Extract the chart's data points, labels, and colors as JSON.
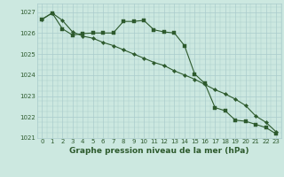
{
  "line1_x": [
    0,
    1,
    2,
    3,
    4,
    5,
    6,
    7,
    8,
    9,
    10,
    11,
    12,
    13,
    14,
    15,
    16,
    17,
    18,
    19,
    20,
    21,
    22,
    23
  ],
  "line1_y": [
    1026.65,
    1026.95,
    1026.2,
    1025.9,
    1025.97,
    1026.0,
    1026.0,
    1026.0,
    1026.55,
    1026.55,
    1026.6,
    1026.15,
    1026.05,
    1026.0,
    1025.4,
    1024.05,
    1023.6,
    1022.45,
    1022.3,
    1021.85,
    1021.8,
    1021.65,
    1021.5,
    1021.2
  ],
  "line2_x": [
    0,
    1,
    2,
    3,
    4,
    5,
    6,
    7,
    8,
    9,
    10,
    11,
    12,
    13,
    14,
    15,
    16,
    17,
    18,
    19,
    20,
    21,
    22,
    23
  ],
  "line2_y": [
    1026.65,
    1026.95,
    1026.6,
    1026.05,
    1025.85,
    1025.75,
    1025.55,
    1025.4,
    1025.2,
    1025.0,
    1024.8,
    1024.6,
    1024.45,
    1024.2,
    1024.0,
    1023.8,
    1023.55,
    1023.3,
    1023.1,
    1022.85,
    1022.55,
    1022.05,
    1021.75,
    1021.3
  ],
  "bg_color": "#cce8e0",
  "grid_color": "#aacccc",
  "line_color": "#2d5a2d",
  "marker1": "s",
  "marker2": "D",
  "xlabel": "Graphe pression niveau de la mer (hPa)",
  "ylim": [
    1021.0,
    1027.4
  ],
  "xlim": [
    -0.5,
    23.5
  ],
  "yticks": [
    1021,
    1022,
    1023,
    1024,
    1025,
    1026,
    1027
  ],
  "xticks": [
    0,
    1,
    2,
    3,
    4,
    5,
    6,
    7,
    8,
    9,
    10,
    11,
    12,
    13,
    14,
    15,
    16,
    17,
    18,
    19,
    20,
    21,
    22,
    23
  ],
  "tick_fontsize": 5.0,
  "xlabel_fontsize": 6.5,
  "line_width": 0.8,
  "marker_size": 2.2
}
